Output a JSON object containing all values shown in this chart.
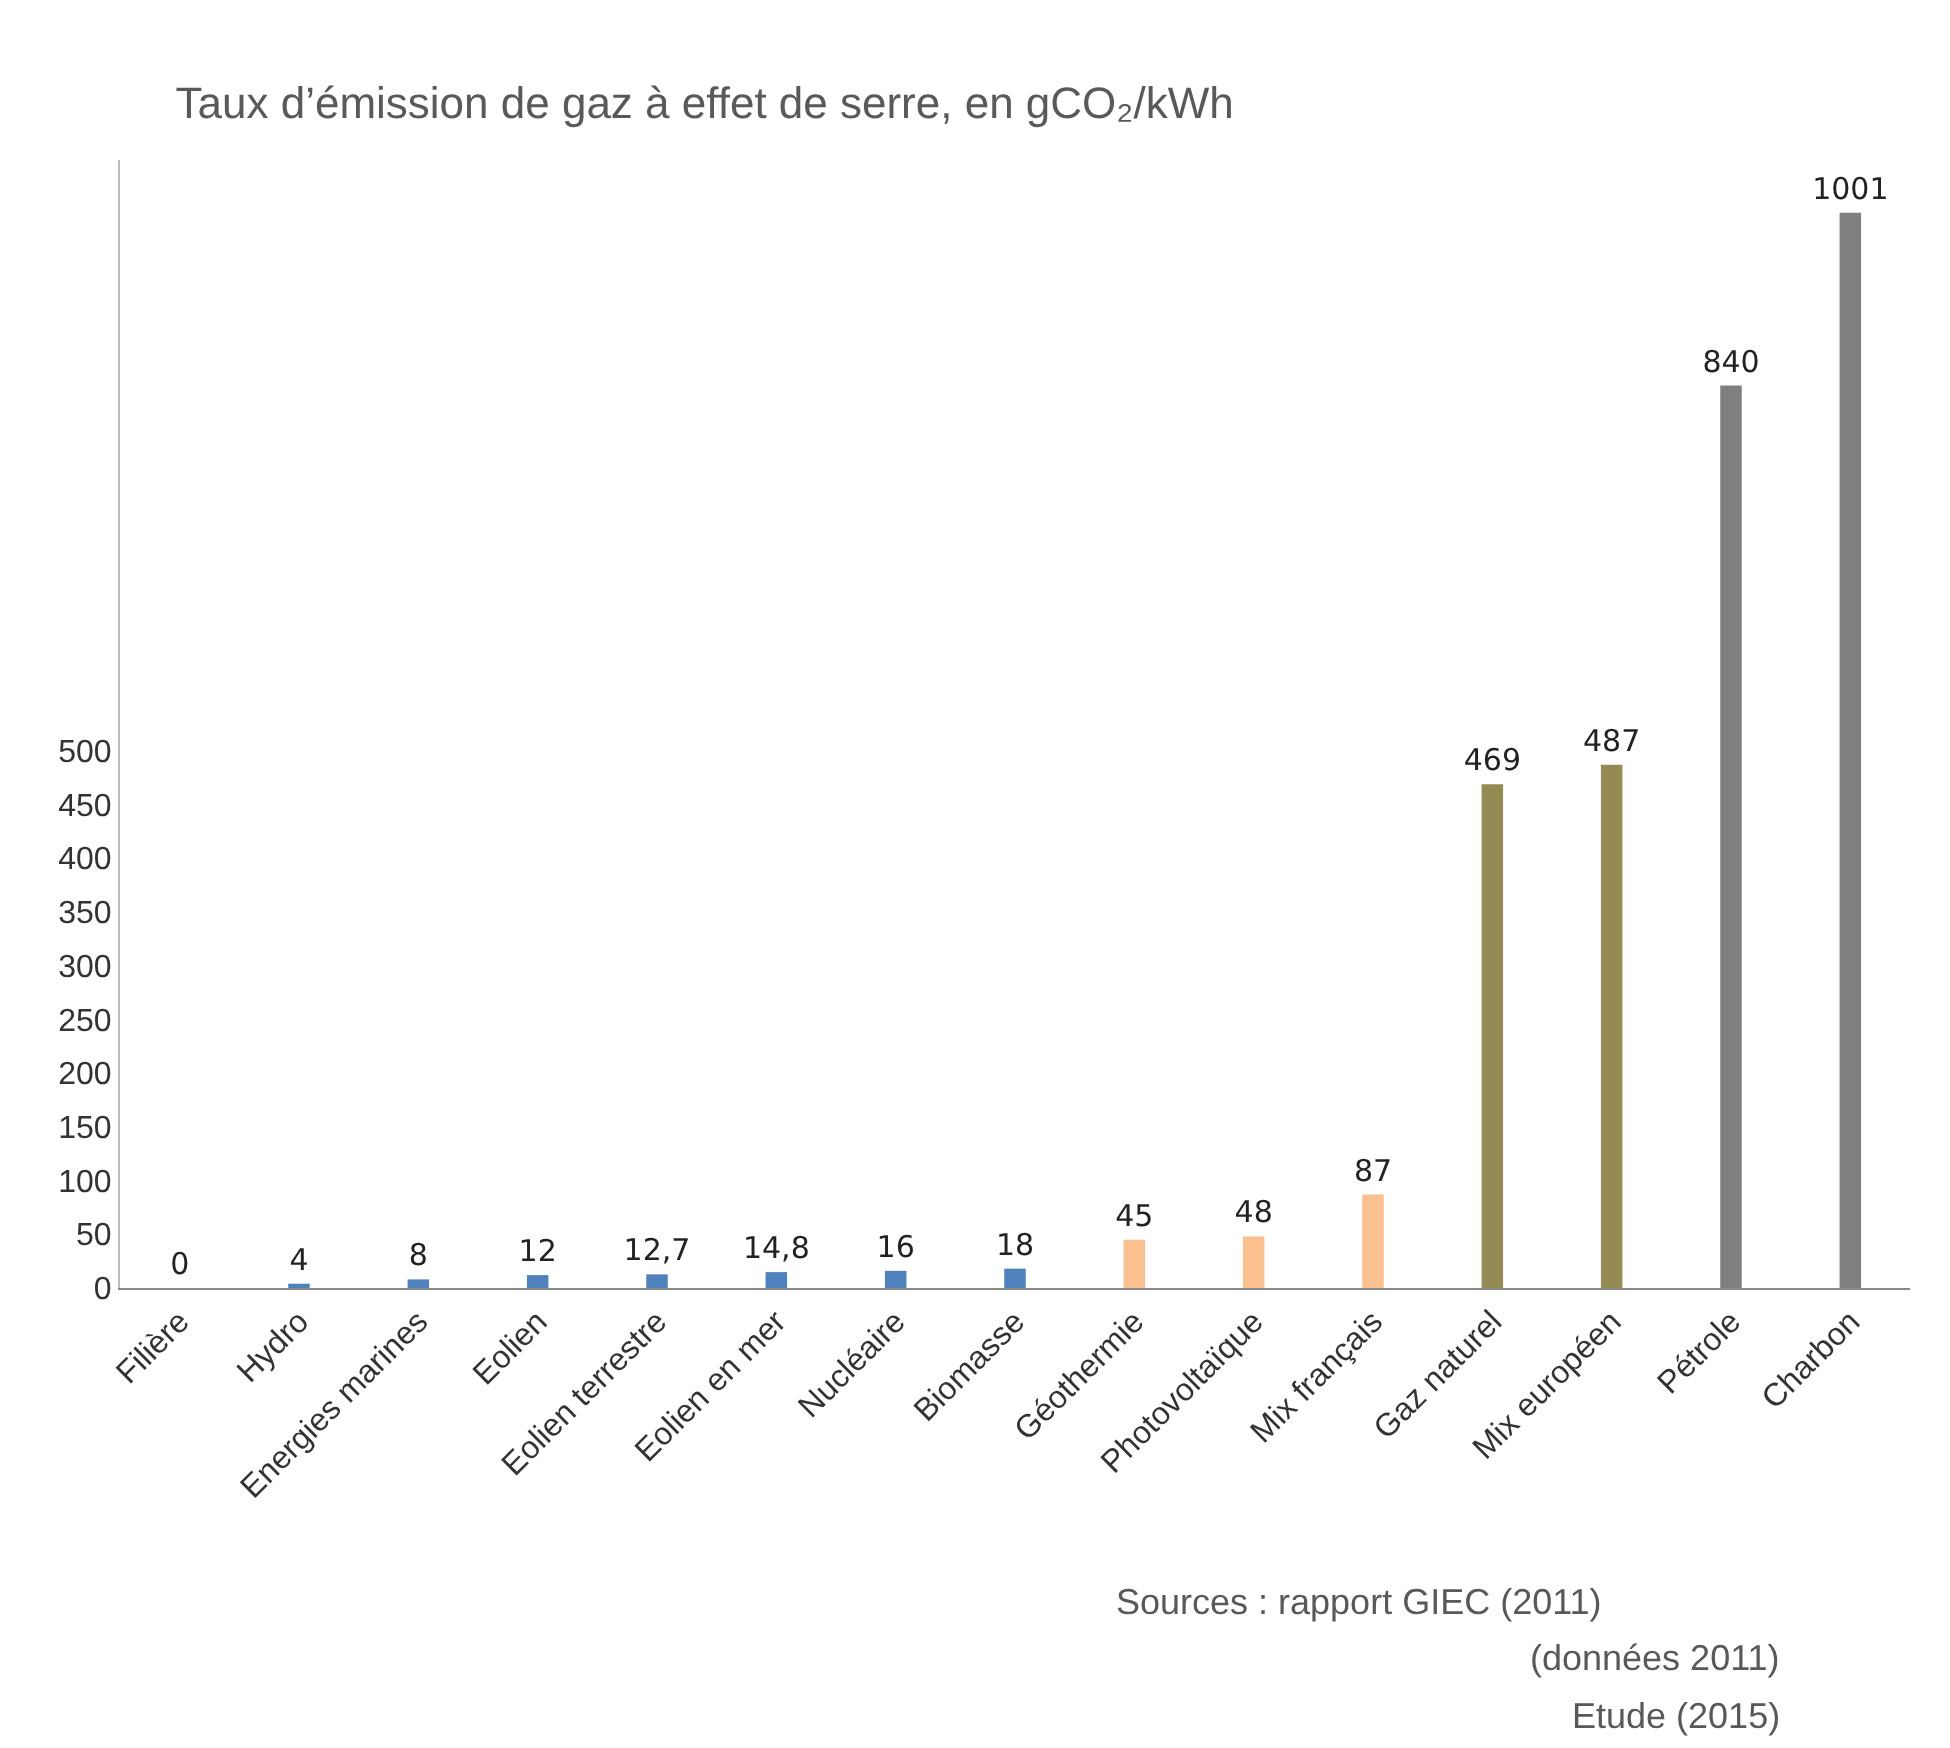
{
  "chart_data": {
    "type": "bar",
    "title": "Taux d’émission de gaz à effet de serre, en gCO₂/kWh",
    "categories": [
      "Filière",
      "Hydro",
      "Energies marines",
      "Eolien",
      "Eolien terrestre",
      "Eolien en mer",
      "Nucléaire",
      "Biomasse",
      "Géothermie",
      "Photovoltaïque",
      "Mix français",
      "Gaz naturel",
      "Mix européen",
      "Pétrole",
      "Charbon"
    ],
    "values": [
      0,
      4,
      8,
      12,
      12.7,
      14.8,
      16,
      18,
      45,
      48,
      87,
      469,
      487,
      840,
      1001
    ],
    "value_labels": [
      "0",
      "4",
      "8",
      "12",
      "12,7",
      "14,8",
      "16",
      "18",
      "45",
      "48",
      "87",
      "469",
      "487",
      "840",
      "1001"
    ],
    "colors": [
      "#4f81bd",
      "#4f81bd",
      "#4f81bd",
      "#4f81bd",
      "#4f81bd",
      "#4f81bd",
      "#4f81bd",
      "#4f81bd",
      "#fac090",
      "#fac090",
      "#fac090",
      "#948a54",
      "#948a54",
      "#7f7f7f",
      "#7f7f7f"
    ],
    "ylim": [
      0,
      1050
    ],
    "yticks": [
      0,
      50,
      100,
      150,
      200,
      250,
      300,
      350,
      400,
      450,
      500
    ],
    "annotations": [
      "Sources : rapport GIEC (2011)",
      "(données 2011)",
      "Etude (2015)"
    ]
  }
}
